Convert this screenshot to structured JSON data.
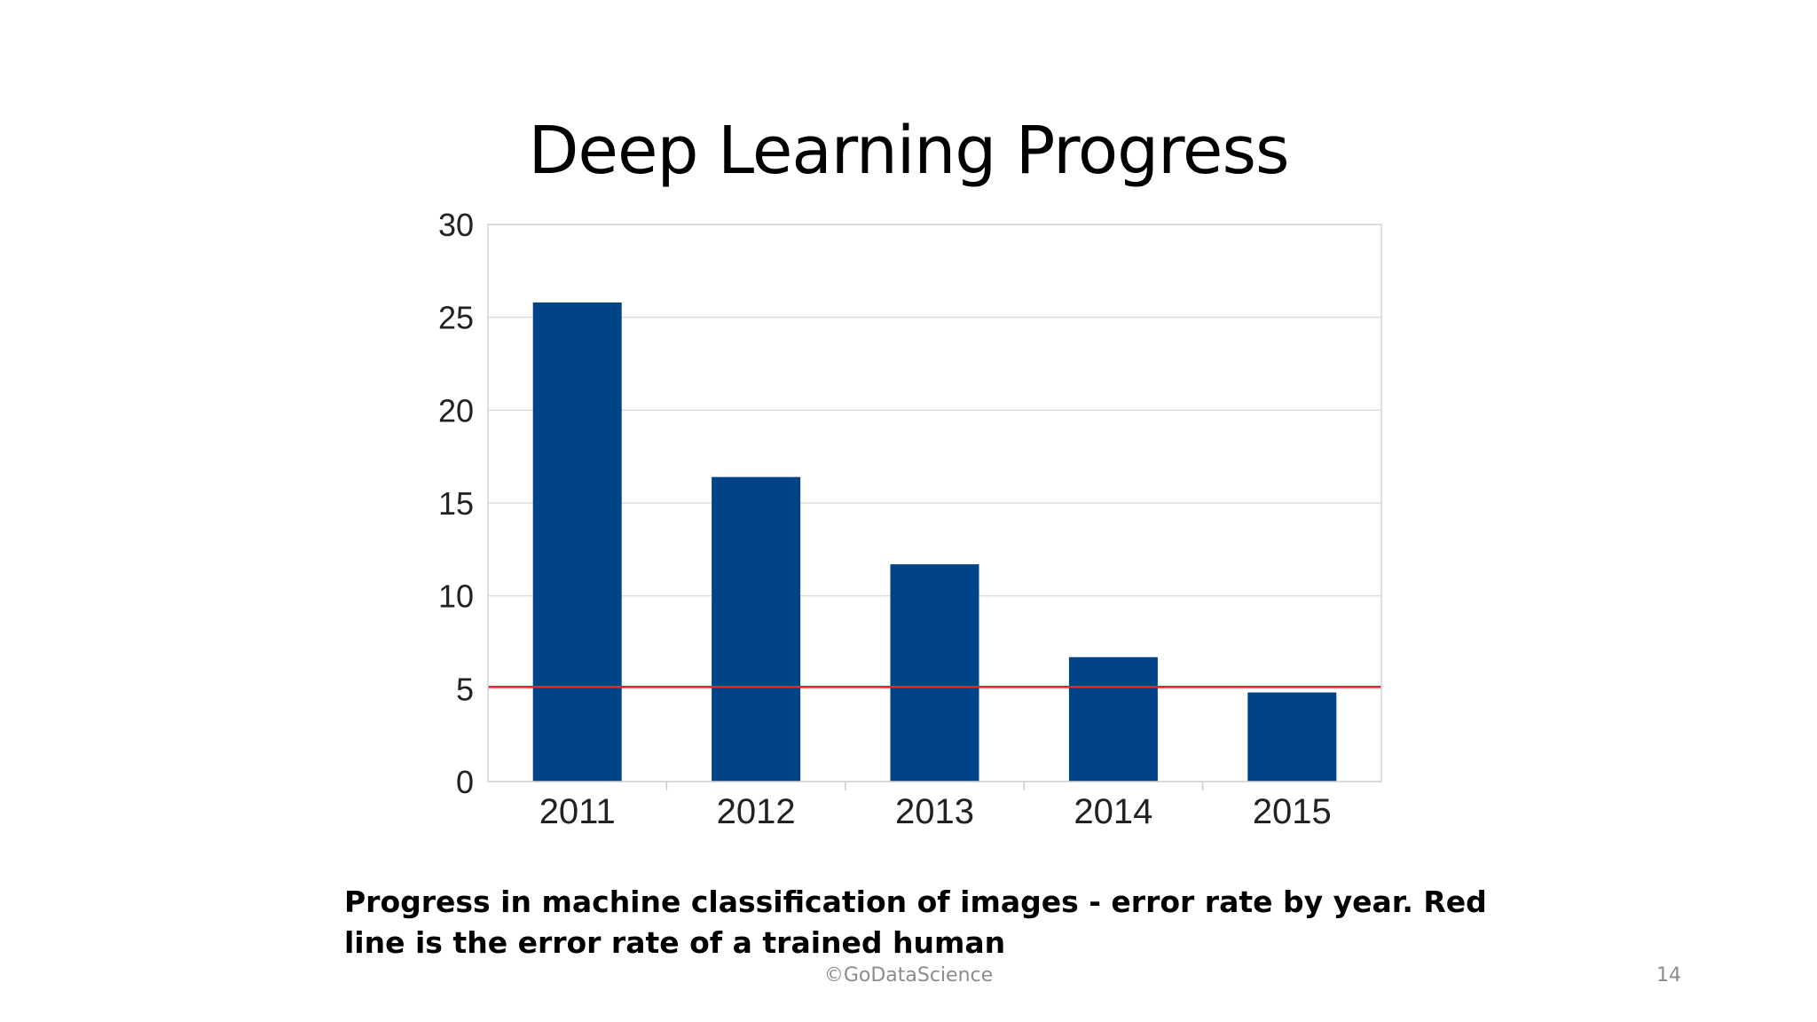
{
  "slide": {
    "title": "Deep Learning Progress",
    "caption": "Progress in machine classification of images - error rate by year. Red line is the error rate of a trained human",
    "footer": "©GoDataScience",
    "page_number": "14"
  },
  "colors": {
    "bar": "#004487",
    "reference_line": "#e8242c",
    "grid": "#dddddd"
  },
  "chart_data": {
    "type": "bar",
    "title": "",
    "xlabel": "",
    "ylabel": "",
    "categories": [
      "2011",
      "2012",
      "2013",
      "2014",
      "2015"
    ],
    "values": [
      25.8,
      16.4,
      11.7,
      6.7,
      4.8
    ],
    "ylim": [
      0,
      30
    ],
    "yticks": [
      0,
      5,
      10,
      15,
      20,
      25,
      30
    ],
    "reference_line": 5.1,
    "grid": true,
    "legend": "none"
  }
}
